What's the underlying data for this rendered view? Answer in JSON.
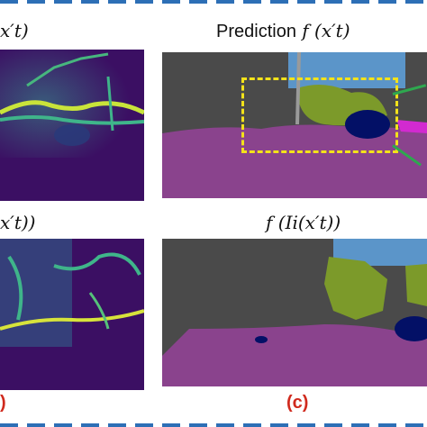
{
  "labels": {
    "top_left": "x′t)",
    "top_right_prefix": "Prediction",
    "top_right_math": "f (x′t)",
    "bottom_left": "x′t))",
    "bottom_right": "f (Ii(x′t))"
  },
  "subfigure_left": ")",
  "subfigure_right": "(c)",
  "colors": {
    "frame": "#2d6fb6",
    "sub_label": "#d02a1e",
    "box": "#f3e21a",
    "link": "#2ea84f"
  }
}
